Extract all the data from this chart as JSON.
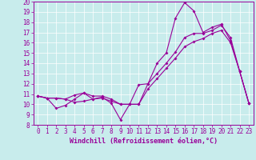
{
  "xlabel": "Windchill (Refroidissement éolien,°C)",
  "background_color": "#c8ecec",
  "line_color": "#990099",
  "xlim": [
    -0.5,
    23.5
  ],
  "ylim": [
    8,
    20
  ],
  "yticks": [
    8,
    9,
    10,
    11,
    12,
    13,
    14,
    15,
    16,
    17,
    18,
    19,
    20
  ],
  "xticks": [
    0,
    1,
    2,
    3,
    4,
    5,
    6,
    7,
    8,
    9,
    10,
    11,
    12,
    13,
    14,
    15,
    16,
    17,
    18,
    19,
    20,
    21,
    22,
    23
  ],
  "series1_x": [
    0,
    1,
    2,
    3,
    4,
    5,
    6,
    7,
    8,
    9,
    10,
    11,
    12,
    13,
    14,
    15,
    16,
    17,
    18,
    19,
    20,
    21,
    22,
    23
  ],
  "series1_y": [
    10.8,
    10.6,
    9.6,
    9.9,
    10.5,
    11.1,
    10.5,
    10.7,
    10.1,
    8.5,
    10.0,
    11.9,
    12.0,
    14.0,
    15.0,
    18.4,
    19.9,
    19.1,
    17.0,
    17.5,
    17.8,
    16.2,
    13.2,
    10.1
  ],
  "series2_x": [
    0,
    1,
    2,
    3,
    4,
    5,
    6,
    7,
    8,
    9,
    10,
    11,
    12,
    13,
    14,
    15,
    16,
    17,
    18,
    19,
    20,
    21,
    22,
    23
  ],
  "series2_y": [
    10.8,
    10.6,
    10.6,
    10.5,
    10.9,
    11.1,
    10.8,
    10.8,
    10.5,
    10.0,
    10.0,
    10.0,
    12.0,
    13.0,
    14.0,
    15.1,
    16.5,
    16.9,
    16.9,
    17.2,
    17.7,
    16.5,
    13.2,
    10.1
  ],
  "series3_x": [
    0,
    1,
    2,
    3,
    4,
    5,
    6,
    7,
    8,
    9,
    10,
    11,
    12,
    13,
    14,
    15,
    16,
    17,
    18,
    19,
    20,
    21,
    22,
    23
  ],
  "series3_y": [
    10.8,
    10.6,
    10.6,
    10.5,
    10.2,
    10.3,
    10.5,
    10.6,
    10.3,
    10.0,
    10.0,
    10.0,
    11.5,
    12.5,
    13.5,
    14.5,
    15.6,
    16.1,
    16.4,
    16.9,
    17.2,
    16.0,
    13.2,
    10.1
  ],
  "grid_color": "#ffffff",
  "tick_fontsize": 5.5,
  "xlabel_fontsize": 6.0
}
